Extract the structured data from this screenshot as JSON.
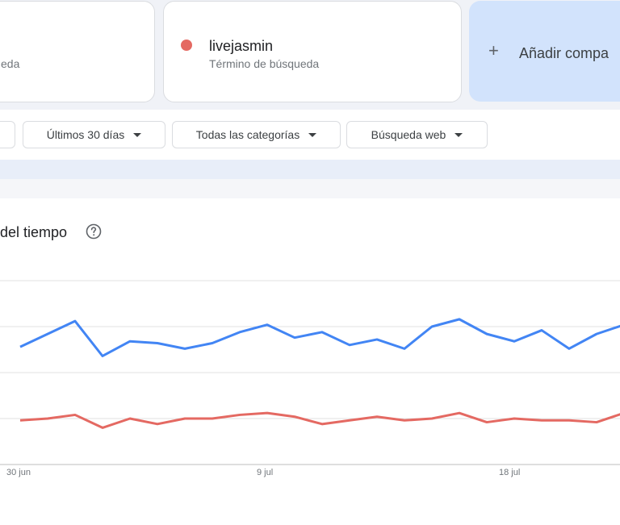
{
  "comparison": {
    "partial_card": {
      "subtitle_fragment": "eda"
    },
    "term_card": {
      "title": "livejasmin",
      "subtitle": "Término de búsqueda",
      "color": "#e46962"
    },
    "add_card": {
      "label": "Añadir compa",
      "icon": "plus-icon"
    }
  },
  "filters": [
    {
      "label": "Últimos 30 días"
    },
    {
      "label": "Todas las categorías"
    },
    {
      "label": "Búsqueda web"
    }
  ],
  "panel": {
    "title_fragment": "del tiempo",
    "help_icon": "help-circle-icon"
  },
  "chart_data": {
    "type": "line",
    "x_tick_labels": [
      "30 jun",
      "9 jul",
      "18 jul"
    ],
    "grid": true,
    "series": [
      {
        "color": "#4285f4",
        "values": [
          64,
          71,
          78,
          59,
          67,
          66,
          63,
          66,
          72,
          76,
          69,
          72,
          65,
          68,
          63,
          75,
          79,
          71,
          67,
          73,
          63,
          71,
          76
        ]
      },
      {
        "color": "#e46962",
        "values": [
          24,
          25,
          27,
          20,
          25,
          22,
          25,
          25,
          27,
          28,
          26,
          22,
          24,
          26,
          24,
          25,
          28,
          23,
          25,
          24,
          24,
          23,
          28
        ]
      }
    ]
  }
}
